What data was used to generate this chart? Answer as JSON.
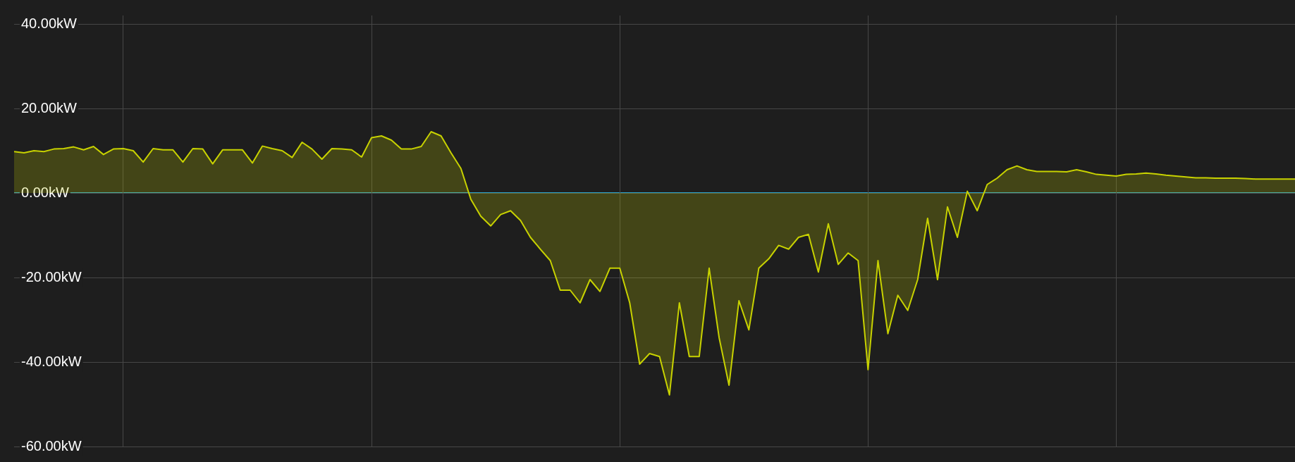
{
  "chart_data": {
    "type": "area",
    "categories": [
      null,
      null,
      null,
      null,
      null,
      null,
      null,
      null,
      null,
      null,
      null,
      null,
      null,
      null,
      null,
      null,
      null,
      null,
      null,
      null,
      null,
      null,
      null,
      null,
      null,
      null,
      null,
      null,
      null,
      null,
      null,
      null,
      null,
      null,
      null,
      null,
      null,
      null,
      null,
      null,
      null,
      null,
      null,
      null,
      null,
      null,
      null,
      null,
      null,
      null,
      null,
      null,
      null,
      null,
      null,
      null,
      null,
      null,
      null,
      null,
      null,
      null,
      null,
      null,
      null,
      null,
      null,
      null,
      null,
      null,
      null,
      null,
      null,
      null,
      null,
      null,
      null,
      null,
      null,
      null,
      null,
      null,
      null,
      null,
      null,
      null,
      null,
      null,
      null,
      null,
      null,
      null,
      null,
      null,
      null,
      null,
      null,
      null,
      null,
      null,
      null,
      null,
      null,
      null,
      null,
      null,
      null,
      null,
      null,
      null,
      null,
      null,
      null,
      null,
      null,
      null,
      null,
      null,
      null,
      null,
      null,
      null,
      null,
      null,
      null,
      null,
      null,
      null,
      null,
      null
    ],
    "series": [
      {
        "color": "#c8d200",
        "values": [
          9.8,
          9.5,
          10.0,
          9.8,
          10.4,
          10.5,
          10.9,
          10.2,
          11.0,
          9.1,
          10.4,
          10.5,
          10.0,
          7.3,
          10.5,
          10.2,
          10.2,
          7.3,
          10.5,
          10.4,
          6.9,
          10.2,
          10.2,
          10.2,
          7.1,
          11.1,
          10.5,
          10.0,
          8.4,
          12.0,
          10.4,
          8.0,
          10.5,
          10.4,
          10.2,
          8.5,
          13.1,
          13.5,
          12.5,
          10.4,
          10.4,
          11.0,
          14.5,
          13.5,
          9.5,
          5.8,
          -1.5,
          -5.5,
          -7.8,
          -5.1,
          -4.2,
          -6.5,
          -10.5,
          -13.3,
          -16.0,
          -23.0,
          -23.0,
          -26.0,
          -20.5,
          -23.3,
          -17.8,
          -17.8,
          -26.0,
          -40.5,
          -38.0,
          -38.7,
          -47.8,
          -26.0,
          -38.7,
          -38.7,
          -17.8,
          -34.2,
          -45.5,
          -25.5,
          -32.4,
          -17.8,
          -15.6,
          -12.4,
          -13.3,
          -10.5,
          -9.8,
          -18.7,
          -7.3,
          -16.9,
          -14.2,
          -16.0,
          -41.8,
          -16.0,
          -33.3,
          -24.2,
          -27.8,
          -20.5,
          -6.0,
          -20.5,
          -3.3,
          -10.5,
          0.4,
          -4.2,
          2.0,
          3.5,
          5.5,
          6.4,
          5.5,
          5.1,
          5.1,
          5.1,
          5.0,
          5.5,
          5.0,
          4.4,
          4.2,
          4.0,
          4.4,
          4.5,
          4.7,
          4.5,
          4.2,
          4.0,
          3.8,
          3.6,
          3.6,
          3.5,
          3.5,
          3.5,
          3.4,
          3.3,
          3.3,
          3.3,
          3.3,
          3.3
        ]
      }
    ],
    "ylim": [
      -60,
      42
    ],
    "yticks": [
      {
        "value": -60,
        "label": "-60.00kW"
      },
      {
        "value": -40,
        "label": "-40.00kW"
      },
      {
        "value": -20,
        "label": "-20.00kW"
      },
      {
        "value": 0,
        "label": "0.00kW"
      },
      {
        "value": 20,
        "label": "20.00kW"
      },
      {
        "value": 40,
        "label": "40.00kW"
      }
    ],
    "tick_labels": "y",
    "grid": true,
    "legend": false,
    "marker": "none",
    "line_style": "solid",
    "ref_lines": [
      {
        "axis": "y",
        "value": 0,
        "color": "#2ba3cc"
      }
    ]
  }
}
